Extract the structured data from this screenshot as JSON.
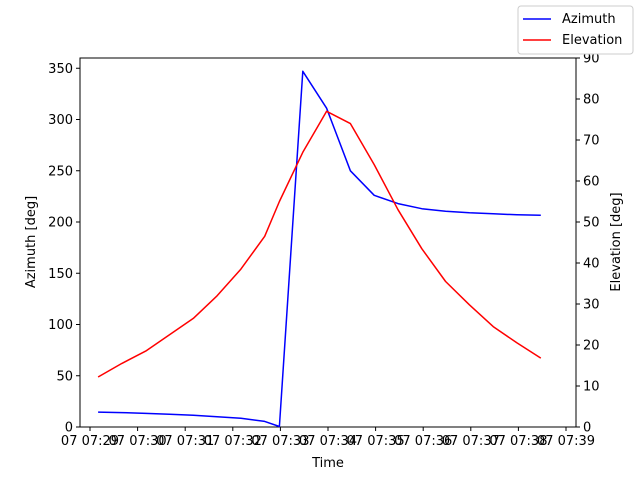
{
  "chart_data": {
    "type": "line",
    "xlabel": "Time",
    "ylabel_left": "Azimuth [deg]",
    "ylabel_right": "Elevation [deg]",
    "x_tick_labels": [
      "07 07:29",
      "07 07:30",
      "07 07:31",
      "07 07:32",
      "07 07:33",
      "07 07:34",
      "07 07:35",
      "07 07:36",
      "07 07:37",
      "07 07:38",
      "07 07:39"
    ],
    "x_tick_values": [
      0,
      1,
      2,
      3,
      4,
      5,
      6,
      7,
      8,
      9,
      10
    ],
    "x_unit": "minutes after 07:29",
    "xlim": [
      0,
      10
    ],
    "ylim_left": [
      0,
      360
    ],
    "ylim_right": [
      0,
      90
    ],
    "left_ticks": [
      0,
      50,
      100,
      150,
      200,
      250,
      300,
      350
    ],
    "right_ticks": [
      0,
      10,
      20,
      30,
      40,
      50,
      60,
      70,
      80,
      90
    ],
    "grid": false,
    "legend_position": "top-right",
    "series": [
      {
        "name": "Azimuth",
        "axis": "left",
        "color": "#0000ff",
        "x": [
          0.17,
          0.67,
          1.17,
          1.67,
          2.17,
          2.67,
          3.17,
          3.67,
          3.98,
          4.47,
          4.97,
          5.47,
          5.97,
          6.47,
          6.97,
          7.47,
          7.97,
          8.47,
          8.97,
          9.47
        ],
        "y": [
          14.5,
          14.0,
          13.3,
          12.5,
          11.5,
          10.0,
          8.5,
          5.5,
          0.5,
          347,
          311,
          250,
          226,
          218,
          213,
          210.5,
          209,
          208,
          207,
          206.5
        ]
      },
      {
        "name": "Elevation",
        "axis": "right",
        "color": "#ff0000",
        "x": [
          0.17,
          0.67,
          1.17,
          1.67,
          2.17,
          2.67,
          3.17,
          3.67,
          3.98,
          4.47,
          4.97,
          5.47,
          5.97,
          6.47,
          6.97,
          7.47,
          7.97,
          8.47,
          8.97,
          9.47
        ],
        "y": [
          12.2,
          15.5,
          18.5,
          22.5,
          26.5,
          32,
          38.5,
          46.5,
          55,
          67,
          77,
          74,
          64,
          53,
          43.5,
          35.5,
          29.8,
          24.5,
          20.5,
          16.8
        ]
      }
    ]
  }
}
